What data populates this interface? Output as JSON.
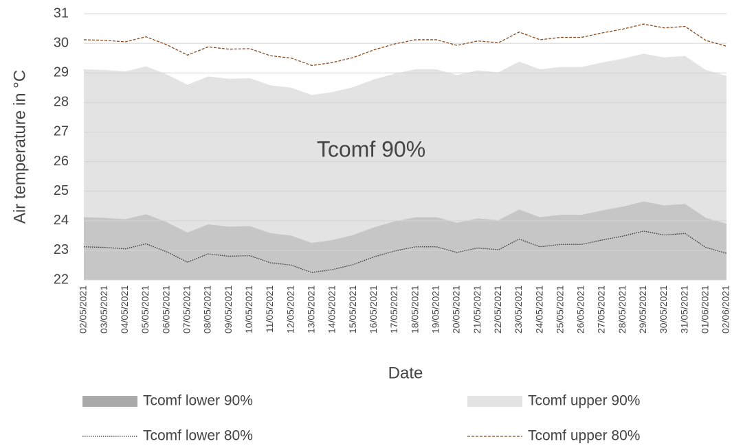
{
  "chart_data": {
    "type": "area",
    "y_label": "Air temperature in °C",
    "x_label": "Date",
    "annotation": "Tcomf 90%",
    "categories": [
      "02/05/2021",
      "03/05/2021",
      "04/05/2021",
      "05/05/2021",
      "06/05/2021",
      "07/05/2021",
      "08/05/2021",
      "09/05/2021",
      "10/05/2021",
      "11/05/2021",
      "12/05/2021",
      "13/05/2021",
      "14/05/2021",
      "15/05/2021",
      "16/05/2021",
      "17/05/2021",
      "18/05/2021",
      "19/05/2021",
      "20/05/2021",
      "21/05/2021",
      "22/05/2021",
      "23/05/2021",
      "24/05/2021",
      "25/05/2021",
      "26/05/2021",
      "27/05/2021",
      "28/05/2021",
      "29/05/2021",
      "30/05/2021",
      "31/05/2021",
      "01/06/2021",
      "02/06/2021"
    ],
    "series": [
      {
        "name": "Tcomf upper 90%",
        "type": "area",
        "color": "#e3e3e3",
        "values": [
          29.12,
          29.1,
          29.05,
          29.22,
          28.95,
          28.6,
          28.88,
          28.8,
          28.82,
          28.58,
          28.5,
          28.25,
          28.35,
          28.52,
          28.78,
          28.98,
          29.12,
          29.12,
          28.93,
          29.08,
          29.02,
          29.38,
          29.12,
          29.2,
          29.2,
          29.35,
          29.48,
          29.65,
          29.52,
          29.57,
          29.1,
          28.9
        ]
      },
      {
        "name": "Tcomf lower 90%",
        "type": "area",
        "color": "#c6c6c6",
        "values": [
          24.12,
          24.1,
          24.05,
          24.22,
          23.95,
          23.6,
          23.88,
          23.8,
          23.82,
          23.58,
          23.5,
          23.25,
          23.35,
          23.52,
          23.78,
          23.98,
          24.12,
          24.12,
          23.93,
          24.08,
          24.02,
          24.38,
          24.12,
          24.2,
          24.2,
          24.35,
          24.48,
          24.65,
          24.52,
          24.57,
          24.1,
          23.9
        ]
      },
      {
        "name": "Tcomf lower 80%",
        "type": "line",
        "dash": "dotted",
        "color": "#333333",
        "values": [
          23.12,
          23.1,
          23.05,
          23.22,
          22.95,
          22.6,
          22.88,
          22.8,
          22.82,
          22.58,
          22.5,
          22.25,
          22.35,
          22.52,
          22.78,
          22.98,
          23.12,
          23.12,
          22.93,
          23.08,
          23.02,
          23.38,
          23.12,
          23.2,
          23.2,
          23.35,
          23.48,
          23.65,
          23.52,
          23.57,
          23.1,
          22.9
        ]
      },
      {
        "name": "Tcomf upper 80%",
        "type": "line",
        "dash": "dashed",
        "color": "#8b4a1c",
        "values": [
          30.12,
          30.1,
          30.05,
          30.22,
          29.95,
          29.6,
          29.88,
          29.8,
          29.82,
          29.58,
          29.5,
          29.25,
          29.35,
          29.52,
          29.78,
          29.98,
          30.12,
          30.12,
          29.93,
          30.08,
          30.02,
          30.38,
          30.12,
          30.2,
          30.2,
          30.35,
          30.48,
          30.65,
          30.52,
          30.57,
          30.1,
          29.9
        ]
      }
    ],
    "ylim": [
      22,
      31
    ],
    "yticks": [
      22,
      23,
      24,
      25,
      26,
      27,
      28,
      29,
      30,
      31
    ],
    "grid": true,
    "legend": "bottom"
  }
}
